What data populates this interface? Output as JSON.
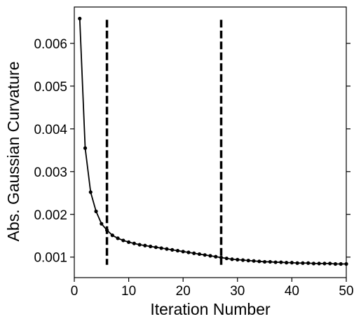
{
  "chart_data": {
    "type": "line",
    "title": "",
    "xlabel": "Iteration Number",
    "ylabel": "Abs. Gaussian Curvature",
    "xlim": [
      0,
      50
    ],
    "ylim": [
      0.00052,
      0.00685
    ],
    "xticks": [
      0,
      10,
      20,
      30,
      40,
      50
    ],
    "xtick_labels": [
      "0",
      "10",
      "20",
      "30",
      "40",
      "50"
    ],
    "yticks": [
      0.001,
      0.002,
      0.003,
      0.004,
      0.005,
      0.006
    ],
    "ytick_labels": [
      "0.001",
      "0.002",
      "0.003",
      "0.004",
      "0.005",
      "0.006"
    ],
    "grid": false,
    "series": [
      {
        "color": "#000000",
        "marker": "circle",
        "x": [
          1,
          2,
          3,
          4,
          5,
          6,
          7,
          8,
          9,
          10,
          11,
          12,
          13,
          14,
          15,
          16,
          17,
          18,
          19,
          20,
          21,
          22,
          23,
          24,
          25,
          26,
          27,
          28,
          29,
          30,
          31,
          32,
          33,
          34,
          35,
          36,
          37,
          38,
          39,
          40,
          41,
          42,
          43,
          44,
          45,
          46,
          47,
          48,
          49,
          50
        ],
        "y": [
          0.00658,
          0.00355,
          0.00252,
          0.00207,
          0.00178,
          0.00163,
          0.00151,
          0.00144,
          0.00139,
          0.00135,
          0.00132,
          0.00129,
          0.00127,
          0.00125,
          0.00123,
          0.00121,
          0.00119,
          0.00117,
          0.00115,
          0.00113,
          0.00111,
          0.00109,
          0.00107,
          0.00105,
          0.00103,
          0.00101,
          0.00099,
          0.00097,
          0.00095,
          0.00094,
          0.00093,
          0.00092,
          0.00091,
          0.0009,
          0.00089,
          0.00089,
          0.00088,
          0.00088,
          0.00087,
          0.00087,
          0.00086,
          0.00086,
          0.00086,
          0.00085,
          0.00085,
          0.00085,
          0.00085,
          0.00084,
          0.00084,
          0.00084
        ]
      }
    ],
    "vlines": [
      {
        "x": 6,
        "y_range": [
          0.00082,
          0.00655
        ],
        "style": "dashed",
        "color": "#000000"
      },
      {
        "x": 27,
        "y_range": [
          0.00082,
          0.00655
        ],
        "style": "dashed",
        "color": "#000000"
      }
    ]
  }
}
